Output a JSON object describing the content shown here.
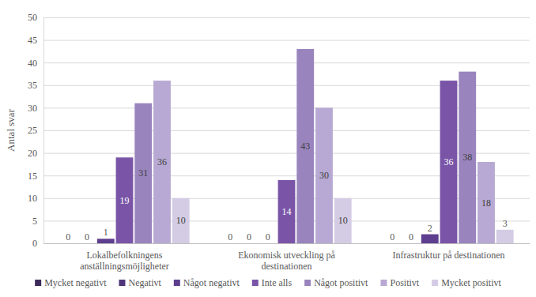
{
  "chart_data": {
    "type": "bar",
    "y_label": "Antal svar",
    "categories": [
      "Lokalbefolkningens anställningsmöjligheter",
      "Ekonomisk utveckling på destinationen",
      "Infrastruktur på destinationen"
    ],
    "series": [
      {
        "name": "Mycket negativt",
        "color": "#3d2b5a",
        "values": [
          0,
          0,
          0
        ]
      },
      {
        "name": "Negativt",
        "color": "#4f3579",
        "values": [
          0,
          0,
          0
        ]
      },
      {
        "name": "Något negativt",
        "color": "#5d3e8f",
        "values": [
          1,
          0,
          2
        ]
      },
      {
        "name": "Inte alls",
        "color": "#7a55a7",
        "values": [
          19,
          14,
          36
        ]
      },
      {
        "name": "Något positivt",
        "color": "#9a84bd",
        "values": [
          31,
          43,
          38
        ]
      },
      {
        "name": "Positivt",
        "color": "#b7a9d3",
        "values": [
          36,
          30,
          18
        ]
      },
      {
        "name": "Mycket positivt",
        "color": "#d4cce5",
        "values": [
          10,
          10,
          3
        ]
      }
    ],
    "ylim": [
      0,
      50
    ],
    "yticks": [
      0,
      5,
      10,
      15,
      20,
      25,
      30,
      35,
      40,
      45,
      50
    ],
    "grid": true,
    "legend": "bottom",
    "data_labels": true
  }
}
